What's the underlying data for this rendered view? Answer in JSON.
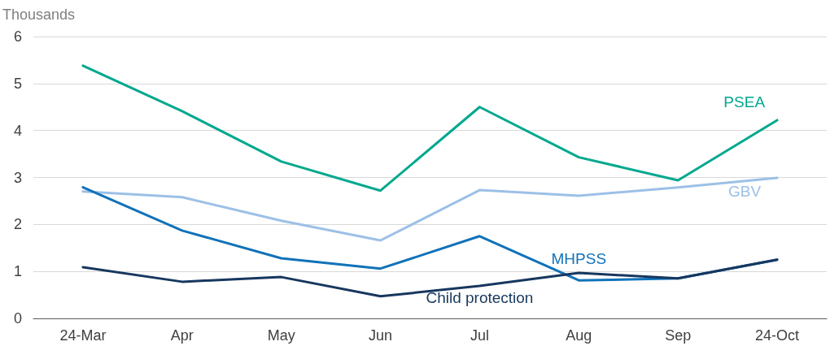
{
  "chart_data": {
    "type": "line",
    "ylabel": "Thousands",
    "categories": [
      "24-Mar",
      "Apr",
      "May",
      "Jun",
      "Jul",
      "Aug",
      "Sep",
      "24-Oct"
    ],
    "series": [
      {
        "name": "PSEA",
        "color": "#00a88e",
        "values": [
          5.38,
          4.41,
          3.34,
          2.72,
          4.5,
          3.43,
          2.94,
          4.22
        ]
      },
      {
        "name": "GBV",
        "color": "#9cc0e6",
        "values": [
          2.7,
          2.58,
          2.08,
          1.66,
          2.73,
          2.61,
          2.79,
          2.99
        ]
      },
      {
        "name": "MHPSS",
        "color": "#1172ba",
        "values": [
          2.79,
          1.87,
          1.28,
          1.06,
          1.75,
          0.81,
          0.85,
          1.25
        ]
      },
      {
        "name": "Child protection",
        "color": "#17375e",
        "values": [
          1.09,
          0.78,
          0.88,
          0.47,
          0.69,
          0.97,
          0.85,
          1.25
        ]
      }
    ],
    "ylim": [
      0,
      6
    ],
    "yticks": [
      0,
      1,
      2,
      3,
      4,
      5,
      6
    ],
    "grid": "y",
    "legend": false,
    "marker": "none",
    "line_style": "solid"
  }
}
